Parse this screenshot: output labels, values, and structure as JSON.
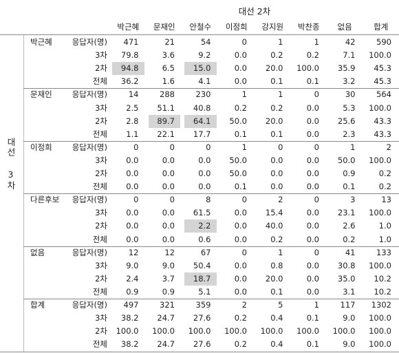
{
  "header": {
    "column_title": "대선 2차",
    "row_title": "대선 3차",
    "columns": [
      "박근혜",
      "문재인",
      "안철수",
      "이정희",
      "강지원",
      "박찬종",
      "없음",
      "합계"
    ]
  },
  "groups": [
    {
      "name": "박근혜",
      "rows": [
        {
          "label": "응답자(명)",
          "cells": [
            "471",
            "21",
            "54",
            "0",
            "1",
            "1",
            "42",
            "590"
          ]
        },
        {
          "label": "3차",
          "cells": [
            "79.8",
            "3.6",
            "9.2",
            "0.0",
            "0.2",
            "0.2",
            "7.1",
            "100.0"
          ]
        },
        {
          "label": "2차",
          "cells": [
            "94.8",
            "6.5",
            "15.0",
            "0.0",
            "20.0",
            "100.0",
            "35.9",
            "45.3"
          ]
        },
        {
          "label": "전체",
          "cells": [
            "36.2",
            "1.6",
            "4.1",
            "0.0",
            "0.1",
            "0.1",
            "3.2",
            "45.3"
          ]
        }
      ]
    },
    {
      "name": "문재인",
      "rows": [
        {
          "label": "응답자(명)",
          "cells": [
            "14",
            "288",
            "230",
            "1",
            "1",
            "0",
            "30",
            "564"
          ]
        },
        {
          "label": "3차",
          "cells": [
            "2.5",
            "51.1",
            "40.8",
            "0.2",
            "0.2",
            "0.0",
            "5.3",
            "100.0"
          ]
        },
        {
          "label": "2차",
          "cells": [
            "2.8",
            "89.7",
            "64.1",
            "50.0",
            "20.0",
            "0.0",
            "25.6",
            "43.3"
          ]
        },
        {
          "label": "전체",
          "cells": [
            "1.1",
            "22.1",
            "17.7",
            "0.1",
            "0.1",
            "0.0",
            "2.3",
            "43.3"
          ]
        }
      ]
    },
    {
      "name": "이정희",
      "rows": [
        {
          "label": "응답자(명)",
          "cells": [
            "0",
            "0",
            "0",
            "1",
            "0",
            "0",
            "1",
            "2"
          ]
        },
        {
          "label": "3차",
          "cells": [
            "0.0",
            "0.0",
            "0.0",
            "50.0",
            "0.0",
            "0.0",
            "50.0",
            "100.0"
          ]
        },
        {
          "label": "2차",
          "cells": [
            "0.0",
            "0.0",
            "0.0",
            "50.0",
            "0.0",
            "0.0",
            "0.9",
            "0.2"
          ]
        },
        {
          "label": "전체",
          "cells": [
            "0.0",
            "0.0",
            "0.0",
            "0.1",
            "0.0",
            "0.0",
            "0.1",
            "0.2"
          ]
        }
      ]
    },
    {
      "name": "다른후보",
      "rows": [
        {
          "label": "응답자(명)",
          "cells": [
            "0",
            "0",
            "8",
            "0",
            "2",
            "0",
            "3",
            "13"
          ]
        },
        {
          "label": "3차",
          "cells": [
            "0.0",
            "0.0",
            "61.5",
            "0.0",
            "15.4",
            "0.0",
            "23.1",
            "100.0"
          ]
        },
        {
          "label": "2차",
          "cells": [
            "0.0",
            "0.0",
            "2.2",
            "0.0",
            "40.0",
            "0.0",
            "2.6",
            "1.0"
          ]
        },
        {
          "label": "전체",
          "cells": [
            "0.0",
            "0.0",
            "0.6",
            "0.0",
            "0.2",
            "0.0",
            "0.2",
            "1.0"
          ]
        }
      ]
    },
    {
      "name": "없음",
      "rows": [
        {
          "label": "응답자(명)",
          "cells": [
            "12",
            "12",
            "67",
            "0",
            "1",
            "0",
            "41",
            "133"
          ]
        },
        {
          "label": "3차",
          "cells": [
            "9.0",
            "9.0",
            "50.4",
            "0.0",
            "0.8",
            "0.0",
            "30.8",
            "100.0"
          ]
        },
        {
          "label": "2차",
          "cells": [
            "2.4",
            "3.7",
            "18.7",
            "0.0",
            "20.0",
            "0.0",
            "35.0",
            "10.2"
          ]
        },
        {
          "label": "전체",
          "cells": [
            "0.9",
            "0.9",
            "5.1",
            "0.0",
            "0.1",
            "0.0",
            "3.1",
            "10.2"
          ]
        }
      ]
    },
    {
      "name": "합계",
      "rows": [
        {
          "label": "응답자(명)",
          "cells": [
            "497",
            "321",
            "359",
            "2",
            "5",
            "1",
            "117",
            "1302"
          ]
        },
        {
          "label": "3차",
          "cells": [
            "38.2",
            "24.7",
            "27.6",
            "0.2",
            "0.4",
            "0.1",
            "9.0",
            "100.0"
          ]
        },
        {
          "label": "2차",
          "cells": [
            "100.0",
            "100.0",
            "100.0",
            "100.0",
            "100.0",
            "100.0",
            "100.0",
            "100.0"
          ]
        },
        {
          "label": "전체",
          "cells": [
            "38.2",
            "24.7",
            "27.6",
            "0.2",
            "0.4",
            "0.1",
            "9.0",
            "100.0"
          ]
        }
      ]
    }
  ]
}
